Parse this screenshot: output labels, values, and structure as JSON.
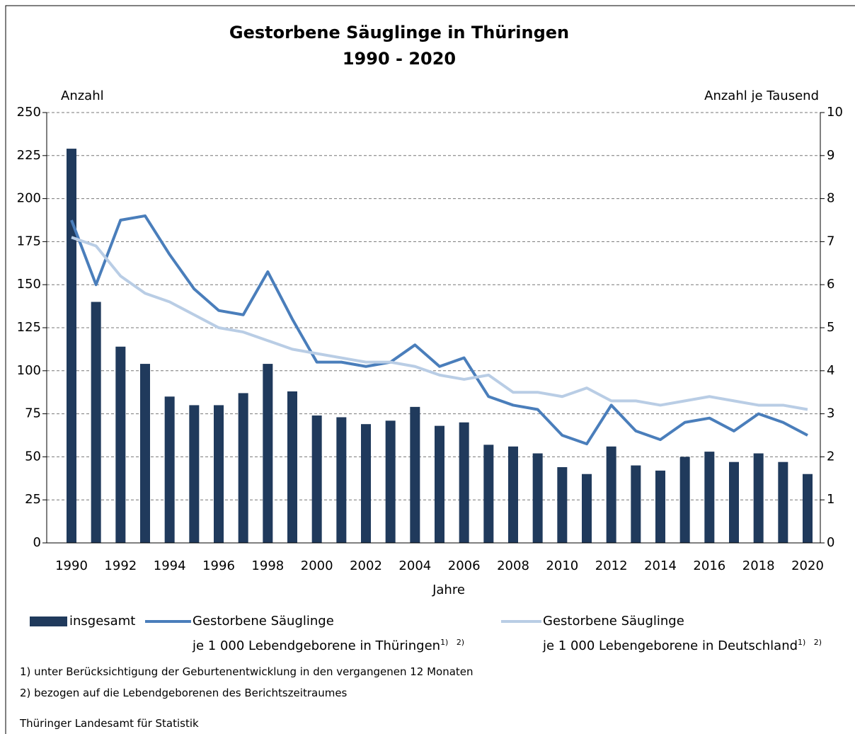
{
  "chart_data": {
    "type": "bar_line",
    "title": "Gestorbene Säuglinge in Thüringen",
    "subtitle": "1990 - 2020",
    "y_label": "Anzahl",
    "y2_label": "Anzahl je Tausend",
    "x_label": "Jahre",
    "categories": [
      "1990",
      null,
      "1992",
      null,
      "1994",
      null,
      "1996",
      null,
      "1998",
      null,
      "2000",
      null,
      "2002",
      null,
      "2004",
      null,
      "2006",
      null,
      "2008",
      null,
      "2010",
      null,
      "2012",
      null,
      "2014",
      null,
      "2016",
      null,
      "2018",
      null,
      "2020"
    ],
    "series": [
      {
        "name": "insgesamt",
        "type": "bar",
        "color": "#203a5c",
        "values": [
          229,
          140,
          114,
          104,
          85,
          80,
          80,
          87,
          104,
          88,
          74,
          73,
          69,
          71,
          79,
          68,
          70,
          57,
          56,
          52,
          44,
          40,
          56,
          45,
          42,
          50,
          53,
          47,
          52,
          47,
          40
        ]
      },
      {
        "name": "Gestorbene Säuglinge\nje 1 000 Lebendgeborene in Thüringen",
        "footnote_refs": [
          "1)",
          "2)"
        ],
        "type": "line",
        "axis": "y2",
        "color": "#4a7ebb",
        "values": [
          7.5,
          6.0,
          7.5,
          7.6,
          6.7,
          5.9,
          5.4,
          5.3,
          6.3,
          5.2,
          4.2,
          4.2,
          4.1,
          4.2,
          4.6,
          4.1,
          4.3,
          3.4,
          3.2,
          3.1,
          2.5,
          2.3,
          3.2,
          2.6,
          2.4,
          2.8,
          2.9,
          2.6,
          3.0,
          2.8,
          2.5
        ]
      },
      {
        "name": "Gestorbene Säuglinge\nje 1 000 Lebengeborene in Deutschland",
        "footnote_refs": [
          "1)",
          "2)"
        ],
        "type": "line",
        "axis": "y2",
        "color": "#b9cde5",
        "values": [
          7.1,
          6.9,
          6.2,
          5.8,
          5.6,
          5.3,
          5.0,
          4.9,
          4.7,
          4.5,
          4.4,
          4.3,
          4.2,
          4.2,
          4.1,
          3.9,
          3.8,
          3.9,
          3.5,
          3.5,
          3.4,
          3.6,
          3.3,
          3.3,
          3.2,
          3.3,
          3.4,
          3.3,
          3.2,
          3.2,
          3.1
        ]
      }
    ],
    "ylim": [
      0,
      250
    ],
    "yticks": [
      0,
      25,
      50,
      75,
      100,
      125,
      150,
      175,
      200,
      225,
      250
    ],
    "y2lim": [
      0,
      10
    ],
    "y2ticks": [
      0,
      1,
      2,
      3,
      4,
      5,
      6,
      7,
      8,
      9,
      10
    ],
    "grid": true,
    "footnotes": [
      "1) unter Berücksichtigung der Geburtenentwicklung in den vergangenen 12 Monaten",
      "2) bezogen auf die Lebendgeborenen des Berichtszeitraumes"
    ],
    "source": "Thüringer Landesamt für Statistik"
  }
}
